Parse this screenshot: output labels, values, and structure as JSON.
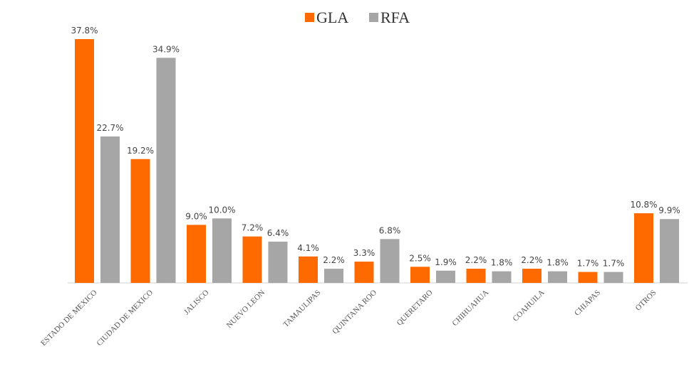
{
  "chart_data": {
    "type": "bar",
    "categories": [
      "ESTADO DE MEXICO",
      "CIUDAD DE MEXICO",
      "JALISCO",
      "NUEVO LEON",
      "TAMAULIPAS",
      "QUINTANA ROO",
      "QUERETARO",
      "CHIHUAHUA",
      "COAHUILA",
      "CHIAPAS",
      "OTROS"
    ],
    "series": [
      {
        "name": "GLA",
        "color": "#ff6a00",
        "values": [
          37.8,
          19.2,
          9.0,
          7.2,
          4.1,
          3.3,
          2.5,
          2.2,
          2.2,
          1.7,
          10.8
        ],
        "value_labels": [
          "37.8%",
          "19.2%",
          "9.0%",
          "7.2%",
          "4.1%",
          "3.3%",
          "2.5%",
          "2.2%",
          "2.2%",
          "1.7%",
          "10.8%"
        ]
      },
      {
        "name": "RFA",
        "color": "#a6a6a6",
        "values": [
          22.7,
          34.9,
          10.0,
          6.4,
          2.2,
          6.8,
          1.9,
          1.8,
          1.8,
          1.7,
          9.9
        ],
        "value_labels": [
          "22.7%",
          "34.9%",
          "10.0%",
          "6.4%",
          "2.2%",
          "6.8%",
          "1.9%",
          "1.8%",
          "1.8%",
          "1.7%",
          "9.9%"
        ]
      }
    ],
    "legend": "top"
  }
}
